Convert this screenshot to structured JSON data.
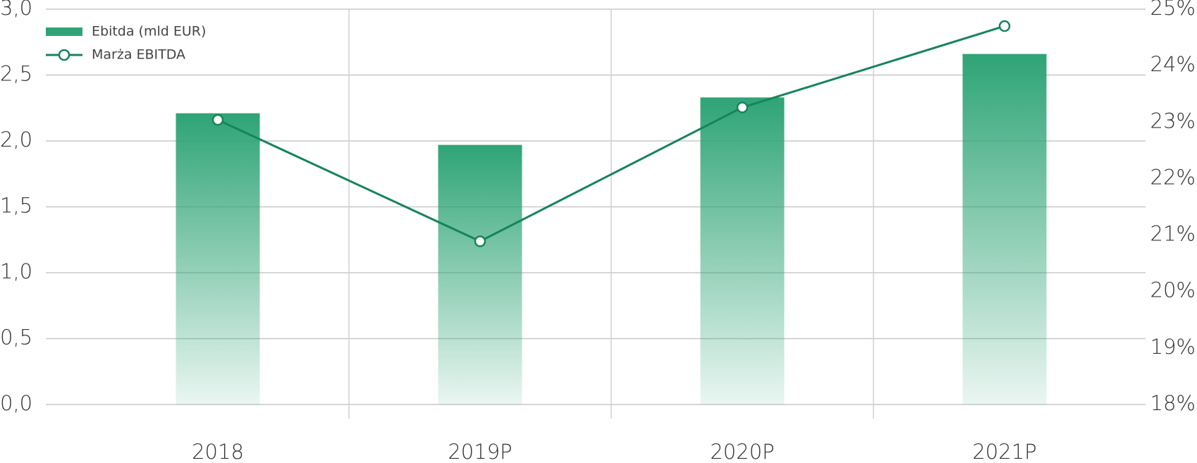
{
  "chart_data": {
    "type": "bar-line",
    "categories": [
      "2018",
      "2019P",
      "2020P",
      "2021P"
    ],
    "series": [
      {
        "name": "Ebitda (mld EUR)",
        "type": "bar",
        "color": "#2ea476",
        "values": [
          2.21,
          1.97,
          2.33,
          2.66
        ]
      },
      {
        "name": "Marża EBITDA",
        "type": "line",
        "axis": "y2",
        "color": "#17845a",
        "values": [
          23.04,
          20.89,
          23.26,
          24.7
        ]
      }
    ],
    "ylim": [
      0,
      3
    ],
    "yticks": [
      {
        "value": 0,
        "label": "0,0"
      },
      {
        "value": 0.5,
        "label": "0,5"
      },
      {
        "value": 1,
        "label": "1,0"
      },
      {
        "value": 1.5,
        "label": "1,5"
      },
      {
        "value": 2,
        "label": "2,0"
      },
      {
        "value": 2.5,
        "label": "2,5"
      },
      {
        "value": 3,
        "label": "3,0"
      }
    ],
    "y2lim": [
      18,
      25
    ],
    "y2ticks": [
      {
        "value": 18,
        "label": "18%"
      },
      {
        "value": 19,
        "label": "19%"
      },
      {
        "value": 20,
        "label": "20%"
      },
      {
        "value": 21,
        "label": "21%"
      },
      {
        "value": 22,
        "label": "22%"
      },
      {
        "value": 23,
        "label": "23%"
      },
      {
        "value": 24,
        "label": "24%"
      },
      {
        "value": 25,
        "label": "25%"
      }
    ],
    "grid": true,
    "legend": "top-left"
  }
}
